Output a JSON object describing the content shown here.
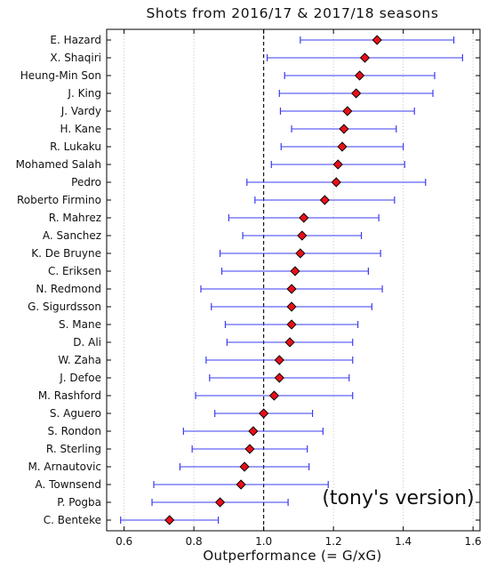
{
  "chart_data": {
    "type": "scatter",
    "title": "Shots from 2016/17 & 2017/18 seasons",
    "xlabel": "Outperformance (= G/xG)",
    "ylabel": "",
    "xlim": [
      0.55,
      1.62
    ],
    "xticks": [
      0.6,
      0.8,
      1.0,
      1.2,
      1.4,
      1.6
    ],
    "xtick_labels": [
      "0.6",
      "0.8",
      "1.0",
      "1.2",
      "1.4",
      "1.6"
    ],
    "grid": "vertical dotted",
    "reference_line_x": 1.0,
    "annotation": "(tony's version)",
    "colors": {
      "marker": "#e8101a",
      "errorbar": "#3a3cf0",
      "reference": "#000000",
      "grid": "#c8c8c8"
    },
    "players": [
      {
        "name": "E. Hazard",
        "value": 1.325,
        "low": 1.105,
        "high": 1.545
      },
      {
        "name": "X. Shaqiri",
        "value": 1.29,
        "low": 1.01,
        "high": 1.57
      },
      {
        "name": "Heung-Min Son",
        "value": 1.275,
        "low": 1.06,
        "high": 1.49
      },
      {
        "name": "J. King",
        "value": 1.265,
        "low": 1.045,
        "high": 1.485
      },
      {
        "name": "J. Vardy",
        "value": 1.24,
        "low": 1.048,
        "high": 1.432
      },
      {
        "name": "H. Kane",
        "value": 1.23,
        "low": 1.08,
        "high": 1.38
      },
      {
        "name": "R. Lukaku",
        "value": 1.225,
        "low": 1.05,
        "high": 1.4
      },
      {
        "name": "Mohamed Salah",
        "value": 1.213,
        "low": 1.022,
        "high": 1.404
      },
      {
        "name": "Pedro",
        "value": 1.208,
        "low": 0.952,
        "high": 1.464
      },
      {
        "name": "Roberto Firmino",
        "value": 1.175,
        "low": 0.975,
        "high": 1.375
      },
      {
        "name": "R. Mahrez",
        "value": 1.115,
        "low": 0.9,
        "high": 1.33
      },
      {
        "name": "A. Sanchez",
        "value": 1.11,
        "low": 0.94,
        "high": 1.28
      },
      {
        "name": "K. De Bruyne",
        "value": 1.105,
        "low": 0.875,
        "high": 1.335
      },
      {
        "name": "C. Eriksen",
        "value": 1.09,
        "low": 0.88,
        "high": 1.3
      },
      {
        "name": "N. Redmond",
        "value": 1.08,
        "low": 0.82,
        "high": 1.34
      },
      {
        "name": "G. Sigurdsson",
        "value": 1.08,
        "low": 0.85,
        "high": 1.31
      },
      {
        "name": "S. Mane",
        "value": 1.08,
        "low": 0.89,
        "high": 1.27
      },
      {
        "name": "D. Ali",
        "value": 1.075,
        "low": 0.895,
        "high": 1.255
      },
      {
        "name": "W. Zaha",
        "value": 1.045,
        "low": 0.835,
        "high": 1.255
      },
      {
        "name": "J. Defoe",
        "value": 1.045,
        "low": 0.845,
        "high": 1.245
      },
      {
        "name": "M. Rashford",
        "value": 1.03,
        "low": 0.805,
        "high": 1.255
      },
      {
        "name": "S. Aguero",
        "value": 1.0,
        "low": 0.86,
        "high": 1.14
      },
      {
        "name": "S. Rondon",
        "value": 0.97,
        "low": 0.77,
        "high": 1.17
      },
      {
        "name": "R. Sterling",
        "value": 0.96,
        "low": 0.795,
        "high": 1.125
      },
      {
        "name": "M. Arnautovic",
        "value": 0.945,
        "low": 0.76,
        "high": 1.13
      },
      {
        "name": "A. Townsend",
        "value": 0.935,
        "low": 0.685,
        "high": 1.185
      },
      {
        "name": "P. Pogba",
        "value": 0.875,
        "low": 0.68,
        "high": 1.07
      },
      {
        "name": "C. Benteke",
        "value": 0.73,
        "low": 0.59,
        "high": 0.87
      }
    ]
  }
}
